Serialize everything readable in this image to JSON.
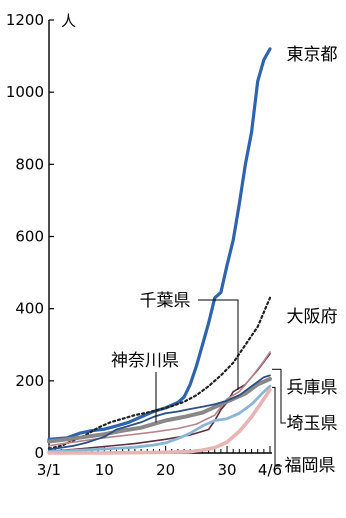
{
  "chart_data": {
    "type": "line",
    "ylabel_unit": "人",
    "ylim": [
      0,
      1200
    ],
    "y_ticks": [
      0,
      200,
      400,
      600,
      800,
      1000,
      1200
    ],
    "x_range_day": [
      1,
      37
    ],
    "x_ticks": [
      {
        "day": 1,
        "label": "3/1"
      },
      {
        "day": 10,
        "label": "10"
      },
      {
        "day": 20,
        "label": "20"
      },
      {
        "day": 30,
        "label": "30"
      },
      {
        "day": 37,
        "label": "4/6"
      }
    ],
    "grid": false,
    "legend": "direct labels at line ends",
    "series": [
      {
        "name": "東京都",
        "color": "#2e63ad",
        "width": 3.2,
        "dash": "",
        "points": [
          [
            1,
            38
          ],
          [
            4,
            42
          ],
          [
            6,
            55
          ],
          [
            8,
            62
          ],
          [
            10,
            66
          ],
          [
            12,
            75
          ],
          [
            14,
            85
          ],
          [
            16,
            100
          ],
          [
            18,
            115
          ],
          [
            20,
            125
          ],
          [
            22,
            140
          ],
          [
            23,
            155
          ],
          [
            24,
            190
          ],
          [
            25,
            240
          ],
          [
            26,
            300
          ],
          [
            27,
            360
          ],
          [
            28,
            430
          ],
          [
            29,
            445
          ],
          [
            30,
            520
          ],
          [
            31,
            590
          ],
          [
            32,
            690
          ],
          [
            33,
            800
          ],
          [
            34,
            890
          ],
          [
            35,
            1030
          ],
          [
            36,
            1090
          ],
          [
            37,
            1120
          ]
        ]
      },
      {
        "name": "大阪府",
        "color": "#222222",
        "width": 2.2,
        "dash": "2,3",
        "points": [
          [
            1,
            12
          ],
          [
            3,
            20
          ],
          [
            5,
            35
          ],
          [
            7,
            50
          ],
          [
            9,
            70
          ],
          [
            11,
            85
          ],
          [
            13,
            95
          ],
          [
            15,
            105
          ],
          [
            17,
            112
          ],
          [
            19,
            120
          ],
          [
            21,
            130
          ],
          [
            23,
            142
          ],
          [
            25,
            160
          ],
          [
            27,
            185
          ],
          [
            29,
            215
          ],
          [
            31,
            250
          ],
          [
            33,
            300
          ],
          [
            35,
            350
          ],
          [
            37,
            430
          ]
        ]
      },
      {
        "name": "千葉県",
        "color": "#5c2e3e",
        "width": 1.6,
        "dash": "",
        "points": [
          [
            1,
            5
          ],
          [
            5,
            10
          ],
          [
            10,
            18
          ],
          [
            15,
            26
          ],
          [
            20,
            38
          ],
          [
            24,
            50
          ],
          [
            27,
            65
          ],
          [
            28,
            90
          ],
          [
            29,
            120
          ],
          [
            30,
            140
          ],
          [
            31,
            170
          ],
          [
            33,
            190
          ],
          [
            35,
            230
          ],
          [
            37,
            275
          ]
        ]
      },
      {
        "name": "兵庫県",
        "color": "#b5848b",
        "width": 1.6,
        "dash": "",
        "points": [
          [
            1,
            20
          ],
          [
            4,
            28
          ],
          [
            7,
            35
          ],
          [
            10,
            42
          ],
          [
            14,
            50
          ],
          [
            18,
            58
          ],
          [
            22,
            68
          ],
          [
            25,
            80
          ],
          [
            28,
            105
          ],
          [
            30,
            150
          ],
          [
            32,
            170
          ],
          [
            34,
            210
          ],
          [
            36,
            255
          ],
          [
            37,
            280
          ]
        ]
      },
      {
        "name": "神奈川県",
        "color": "#888888",
        "width": 4.0,
        "dash": "",
        "points": [
          [
            1,
            32
          ],
          [
            4,
            38
          ],
          [
            7,
            45
          ],
          [
            10,
            52
          ],
          [
            13,
            62
          ],
          [
            16,
            70
          ],
          [
            18,
            80
          ],
          [
            20,
            90
          ],
          [
            23,
            100
          ],
          [
            26,
            112
          ],
          [
            29,
            135
          ],
          [
            31,
            150
          ],
          [
            33,
            165
          ],
          [
            35,
            190
          ],
          [
            37,
            205
          ]
        ]
      },
      {
        "name": "埼玉県",
        "color": "#2a4f82",
        "width": 1.8,
        "dash": "",
        "points": [
          [
            1,
            10
          ],
          [
            3,
            15
          ],
          [
            5,
            20
          ],
          [
            7,
            28
          ],
          [
            10,
            45
          ],
          [
            12,
            65
          ],
          [
            14,
            75
          ],
          [
            16,
            85
          ],
          [
            18,
            100
          ],
          [
            20,
            110
          ],
          [
            22,
            115
          ],
          [
            24,
            122
          ],
          [
            26,
            128
          ],
          [
            28,
            135
          ],
          [
            30,
            145
          ],
          [
            32,
            160
          ],
          [
            34,
            185
          ],
          [
            36,
            210
          ],
          [
            37,
            215
          ]
        ]
      },
      {
        "name": "福岡県",
        "color": "#8ab6d6",
        "width": 2.8,
        "dash": "",
        "points": [
          [
            1,
            4
          ],
          [
            5,
            7
          ],
          [
            10,
            11
          ],
          [
            15,
            16
          ],
          [
            18,
            22
          ],
          [
            20,
            28
          ],
          [
            22,
            40
          ],
          [
            24,
            55
          ],
          [
            26,
            75
          ],
          [
            28,
            90
          ],
          [
            30,
            95
          ],
          [
            32,
            110
          ],
          [
            34,
            135
          ],
          [
            36,
            170
          ],
          [
            37,
            185
          ]
        ]
      },
      {
        "name": "",
        "color": "#e8b4b4",
        "width": 3.6,
        "dash": "",
        "points": [
          [
            1,
            0
          ],
          [
            10,
            0
          ],
          [
            20,
            2
          ],
          [
            24,
            4
          ],
          [
            26,
            8
          ],
          [
            28,
            15
          ],
          [
            30,
            30
          ],
          [
            32,
            60
          ],
          [
            34,
            100
          ],
          [
            36,
            150
          ],
          [
            37,
            175
          ]
        ]
      }
    ],
    "labels": [
      {
        "key": "tokyo",
        "text": "東京都"
      },
      {
        "key": "osaka",
        "text": "大阪府"
      },
      {
        "key": "chiba",
        "text": "千葉県"
      },
      {
        "key": "hyogo",
        "text": "兵庫県"
      },
      {
        "key": "kanagawa",
        "text": "神奈川県"
      },
      {
        "key": "saitama",
        "text": "埼玉県"
      },
      {
        "key": "fukuoka",
        "text": "福岡県"
      }
    ]
  }
}
